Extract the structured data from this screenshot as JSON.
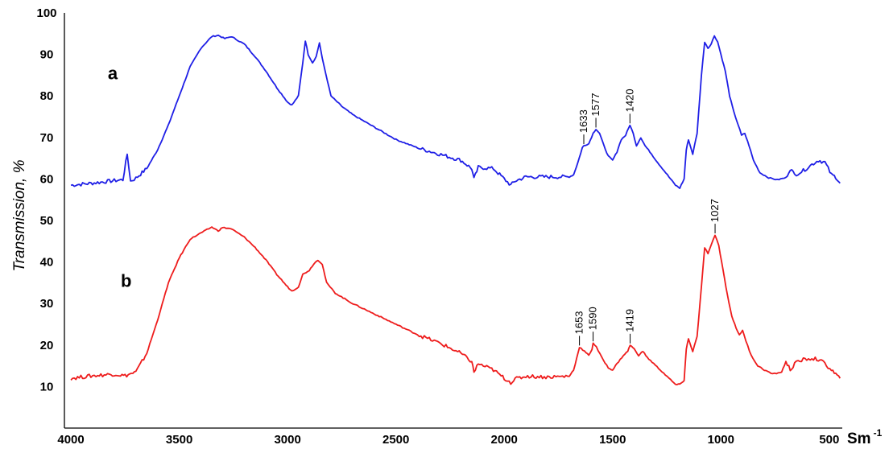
{
  "chart_data": {
    "type": "line",
    "ylabel": "Transmission, %",
    "xunit": "Sm",
    "xunit_sup": "-1",
    "xlim": [
      4030,
      440
    ],
    "ylim": [
      0,
      100
    ],
    "x_ticks": [
      4000,
      3500,
      3000,
      2500,
      2000,
      1500,
      1000,
      500
    ],
    "y_ticks": [
      10,
      20,
      30,
      40,
      50,
      60,
      70,
      80,
      90,
      100
    ],
    "grid": false,
    "legend": "none",
    "series": [
      {
        "name": "a",
        "color": "#1f1fe6",
        "points": [
          [
            4000,
            58.5
          ],
          [
            3900,
            59.0
          ],
          [
            3800,
            59.6
          ],
          [
            3760,
            59.8
          ],
          [
            3740,
            66.0
          ],
          [
            3725,
            59.5
          ],
          [
            3700,
            60.2
          ],
          [
            3650,
            62.5
          ],
          [
            3600,
            67.0
          ],
          [
            3550,
            73.0
          ],
          [
            3500,
            80.0
          ],
          [
            3450,
            87.0
          ],
          [
            3400,
            91.5
          ],
          [
            3350,
            94.3
          ],
          [
            3320,
            94.6
          ],
          [
            3290,
            93.8
          ],
          [
            3260,
            94.3
          ],
          [
            3200,
            92.5
          ],
          [
            3150,
            89.5
          ],
          [
            3100,
            86.0
          ],
          [
            3050,
            82.0
          ],
          [
            3000,
            78.5
          ],
          [
            2980,
            77.8
          ],
          [
            2950,
            80.0
          ],
          [
            2930,
            88.0
          ],
          [
            2918,
            93.3
          ],
          [
            2905,
            90.0
          ],
          [
            2885,
            88.0
          ],
          [
            2868,
            89.5
          ],
          [
            2853,
            92.8
          ],
          [
            2840,
            89.0
          ],
          [
            2800,
            80.0
          ],
          [
            2750,
            77.5
          ],
          [
            2700,
            75.5
          ],
          [
            2600,
            72.5
          ],
          [
            2500,
            69.5
          ],
          [
            2400,
            67.5
          ],
          [
            2300,
            66.0
          ],
          [
            2200,
            64.5
          ],
          [
            2150,
            62.5
          ],
          [
            2140,
            60.0
          ],
          [
            2120,
            62.8
          ],
          [
            2050,
            62.5
          ],
          [
            2000,
            60.0
          ],
          [
            1970,
            58.5
          ],
          [
            1950,
            59.5
          ],
          [
            1900,
            60.5
          ],
          [
            1800,
            60.5
          ],
          [
            1700,
            60.5
          ],
          [
            1680,
            61.0
          ],
          [
            1660,
            64.0
          ],
          [
            1640,
            67.5
          ],
          [
            1633,
            68.0
          ],
          [
            1610,
            68.5
          ],
          [
            1590,
            71.0
          ],
          [
            1577,
            72.0
          ],
          [
            1560,
            71.0
          ],
          [
            1540,
            68.0
          ],
          [
            1520,
            65.5
          ],
          [
            1500,
            64.5
          ],
          [
            1480,
            66.5
          ],
          [
            1460,
            69.5
          ],
          [
            1440,
            70.5
          ],
          [
            1420,
            73.0
          ],
          [
            1405,
            71.0
          ],
          [
            1390,
            68.0
          ],
          [
            1370,
            70.0
          ],
          [
            1350,
            68.0
          ],
          [
            1320,
            66.0
          ],
          [
            1300,
            64.5
          ],
          [
            1270,
            62.5
          ],
          [
            1240,
            60.5
          ],
          [
            1210,
            58.5
          ],
          [
            1190,
            57.8
          ],
          [
            1170,
            60.0
          ],
          [
            1160,
            67.0
          ],
          [
            1150,
            69.5
          ],
          [
            1130,
            66.0
          ],
          [
            1110,
            71.0
          ],
          [
            1090,
            85.0
          ],
          [
            1075,
            93.0
          ],
          [
            1060,
            91.5
          ],
          [
            1045,
            92.5
          ],
          [
            1030,
            94.5
          ],
          [
            1015,
            93.0
          ],
          [
            1000,
            90.0
          ],
          [
            980,
            86.0
          ],
          [
            960,
            80.0
          ],
          [
            940,
            76.0
          ],
          [
            920,
            73.0
          ],
          [
            905,
            70.5
          ],
          [
            890,
            71.0
          ],
          [
            870,
            68.0
          ],
          [
            850,
            64.5
          ],
          [
            820,
            61.5
          ],
          [
            780,
            60.3
          ],
          [
            740,
            59.8
          ],
          [
            700,
            60.3
          ],
          [
            680,
            62.5
          ],
          [
            660,
            61.0
          ],
          [
            620,
            62.0
          ],
          [
            580,
            63.5
          ],
          [
            550,
            64.5
          ],
          [
            520,
            64.0
          ],
          [
            490,
            61.0
          ],
          [
            470,
            60.5
          ],
          [
            450,
            59.0
          ]
        ],
        "peak_labels": [
          "1633",
          "1577",
          "1420"
        ]
      },
      {
        "name": "b",
        "color": "#ee1c1c",
        "points": [
          [
            4000,
            12.0
          ],
          [
            3900,
            12.6
          ],
          [
            3800,
            13.0
          ],
          [
            3750,
            12.6
          ],
          [
            3700,
            13.5
          ],
          [
            3650,
            18.0
          ],
          [
            3600,
            26.0
          ],
          [
            3550,
            35.0
          ],
          [
            3500,
            41.0
          ],
          [
            3450,
            45.5
          ],
          [
            3400,
            47.0
          ],
          [
            3350,
            48.4
          ],
          [
            3320,
            47.5
          ],
          [
            3300,
            48.3
          ],
          [
            3260,
            48.0
          ],
          [
            3200,
            46.0
          ],
          [
            3150,
            43.5
          ],
          [
            3100,
            40.5
          ],
          [
            3050,
            37.0
          ],
          [
            3000,
            34.0
          ],
          [
            2980,
            33.0
          ],
          [
            2950,
            34.0
          ],
          [
            2930,
            37.0
          ],
          [
            2900,
            38.0
          ],
          [
            2880,
            39.5
          ],
          [
            2860,
            40.5
          ],
          [
            2840,
            39.5
          ],
          [
            2820,
            35.0
          ],
          [
            2780,
            32.5
          ],
          [
            2700,
            30.0
          ],
          [
            2600,
            27.5
          ],
          [
            2500,
            25.0
          ],
          [
            2400,
            22.5
          ],
          [
            2300,
            20.5
          ],
          [
            2200,
            18.0
          ],
          [
            2150,
            16.0
          ],
          [
            2140,
            13.5
          ],
          [
            2120,
            15.5
          ],
          [
            2050,
            14.0
          ],
          [
            2000,
            12.0
          ],
          [
            1970,
            11.0
          ],
          [
            1950,
            11.8
          ],
          [
            1900,
            12.5
          ],
          [
            1800,
            12.3
          ],
          [
            1700,
            12.5
          ],
          [
            1680,
            14.0
          ],
          [
            1665,
            17.0
          ],
          [
            1653,
            19.5
          ],
          [
            1630,
            18.5
          ],
          [
            1610,
            17.5
          ],
          [
            1595,
            19.0
          ],
          [
            1590,
            20.5
          ],
          [
            1575,
            19.5
          ],
          [
            1550,
            17.0
          ],
          [
            1520,
            14.5
          ],
          [
            1500,
            14.0
          ],
          [
            1480,
            15.5
          ],
          [
            1450,
            17.5
          ],
          [
            1430,
            18.5
          ],
          [
            1419,
            20.0
          ],
          [
            1400,
            19.0
          ],
          [
            1380,
            17.5
          ],
          [
            1360,
            18.5
          ],
          [
            1340,
            17.0
          ],
          [
            1310,
            15.5
          ],
          [
            1280,
            14.0
          ],
          [
            1240,
            12.0
          ],
          [
            1210,
            10.5
          ],
          [
            1190,
            10.5
          ],
          [
            1170,
            11.5
          ],
          [
            1160,
            19.0
          ],
          [
            1150,
            21.5
          ],
          [
            1130,
            18.5
          ],
          [
            1110,
            22.0
          ],
          [
            1090,
            34.0
          ],
          [
            1075,
            43.5
          ],
          [
            1060,
            42.0
          ],
          [
            1045,
            44.0
          ],
          [
            1027,
            46.5
          ],
          [
            1010,
            44.0
          ],
          [
            990,
            38.0
          ],
          [
            970,
            32.0
          ],
          [
            950,
            27.0
          ],
          [
            930,
            24.0
          ],
          [
            915,
            22.5
          ],
          [
            900,
            23.5
          ],
          [
            885,
            21.0
          ],
          [
            860,
            17.5
          ],
          [
            830,
            15.0
          ],
          [
            800,
            14.0
          ],
          [
            760,
            13.0
          ],
          [
            720,
            13.5
          ],
          [
            700,
            16.0
          ],
          [
            680,
            14.0
          ],
          [
            660,
            15.5
          ],
          [
            620,
            16.5
          ],
          [
            580,
            16.8
          ],
          [
            550,
            16.5
          ],
          [
            520,
            15.5
          ],
          [
            490,
            14.0
          ],
          [
            470,
            13.0
          ],
          [
            450,
            12.0
          ]
        ],
        "peak_labels": [
          "1653",
          "1590",
          "1419",
          "1027"
        ]
      }
    ]
  }
}
